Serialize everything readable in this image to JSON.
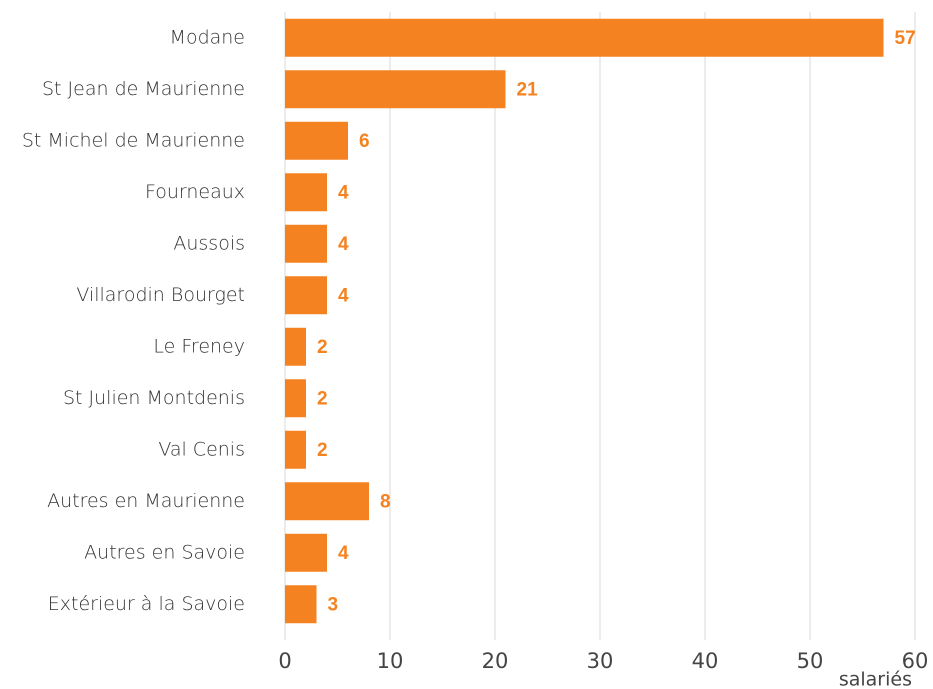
{
  "chart_data": {
    "type": "bar",
    "orientation": "horizontal",
    "categories": [
      "Modane",
      "St Jean de Maurienne",
      "St Michel de Maurienne",
      "Fourneaux",
      "Aussois",
      "Villarodin Bourget",
      "Le Freney",
      "St Julien Montdenis",
      "Val Cenis",
      "Autres en Maurienne",
      "Autres en Savoie",
      "Extérieur à la Savoie"
    ],
    "values": [
      57,
      21,
      6,
      4,
      4,
      4,
      2,
      2,
      2,
      8,
      4,
      3
    ],
    "color": "#f58220",
    "xlabel": "salariés",
    "xlim": [
      0,
      60
    ],
    "xticks": [
      0,
      10,
      20,
      30,
      40,
      50,
      60
    ],
    "grid": true
  }
}
